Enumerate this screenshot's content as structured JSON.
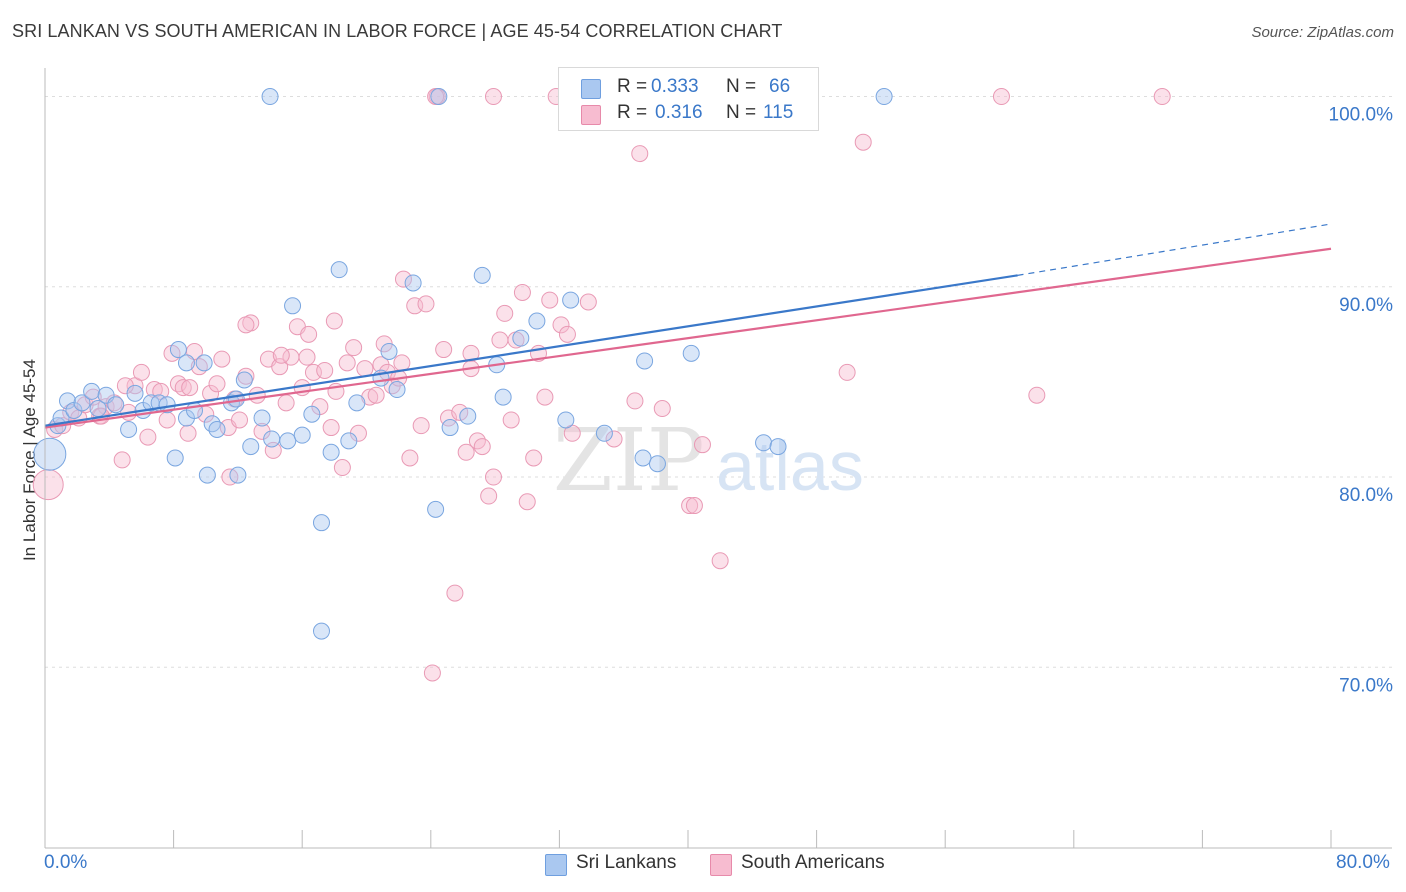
{
  "title": "SRI LANKAN VS SOUTH AMERICAN IN LABOR FORCE | AGE 45-54 CORRELATION CHART",
  "source": "Source: ZipAtlas.com",
  "watermark": {
    "zip": "ZIP",
    "atlas": "atlas"
  },
  "legend": {
    "r_label": "R =",
    "n_label": "N =",
    "entries": [
      {
        "name": "Sri Lankans",
        "r": "0.333",
        "n": "66",
        "fill": "#aac8f0",
        "stroke": "#6f9fdf"
      },
      {
        "name": "South Americans",
        "r": "0.316",
        "n": "115",
        "fill": "#f7bcd0",
        "stroke": "#e78aaa"
      }
    ]
  },
  "chart_data": {
    "type": "scatter",
    "xlabel": "",
    "ylabel": "In Labor Force | Age 45-54",
    "xlim": [
      0,
      80
    ],
    "ylim": [
      60.5,
      101.5
    ],
    "x_tick_labels": [
      "0.0%",
      "80.0%"
    ],
    "y_ticks": [
      {
        "value": 100,
        "label": "100.0%"
      },
      {
        "value": 90,
        "label": "90.0%"
      },
      {
        "value": 80,
        "label": "80.0%"
      },
      {
        "value": 70,
        "label": "70.0%"
      }
    ],
    "grid": true,
    "colors": {
      "sri_lankans": "#3a78c9",
      "south_americans": "#e0678f",
      "tick_label": "#3a78c9"
    },
    "series": [
      {
        "name": "Sri Lankans",
        "trend": {
          "x0": 0,
          "y0": 82.7,
          "x1": 60.5,
          "y1": 90.6,
          "dashed_to_x": 80,
          "dashed_to_y": 93.3
        },
        "points": [
          [
            0.3,
            81.2
          ],
          [
            0.8,
            82.7
          ],
          [
            1.0,
            83.1
          ],
          [
            1.4,
            84.0
          ],
          [
            1.8,
            83.5
          ],
          [
            2.3,
            83.9
          ],
          [
            2.9,
            84.5
          ],
          [
            3.3,
            83.6
          ],
          [
            3.8,
            84.3
          ],
          [
            4.4,
            83.8
          ],
          [
            5.2,
            82.5
          ],
          [
            5.6,
            84.4
          ],
          [
            6.1,
            83.5
          ],
          [
            6.6,
            83.9
          ],
          [
            7.1,
            83.9
          ],
          [
            7.6,
            83.8
          ],
          [
            8.1,
            81.0
          ],
          [
            8.3,
            86.7
          ],
          [
            8.8,
            83.1
          ],
          [
            9.3,
            83.5
          ],
          [
            9.9,
            86.0
          ],
          [
            10.1,
            80.1
          ],
          [
            10.4,
            82.8
          ],
          [
            10.7,
            82.5
          ],
          [
            11.6,
            83.9
          ],
          [
            12.0,
            80.1
          ],
          [
            12.4,
            85.1
          ],
          [
            12.8,
            81.6
          ],
          [
            13.5,
            83.1
          ],
          [
            14.1,
            82.0
          ],
          [
            15.1,
            81.9
          ],
          [
            15.4,
            89.0
          ],
          [
            16.0,
            82.2
          ],
          [
            16.6,
            83.3
          ],
          [
            17.2,
            77.6
          ],
          [
            17.8,
            81.3
          ],
          [
            18.3,
            90.9
          ],
          [
            18.9,
            81.9
          ],
          [
            19.4,
            83.9
          ],
          [
            20.9,
            85.2
          ],
          [
            21.4,
            86.6
          ],
          [
            21.9,
            84.6
          ],
          [
            22.9,
            90.2
          ],
          [
            24.3,
            78.3
          ],
          [
            25.2,
            82.6
          ],
          [
            26.3,
            83.2
          ],
          [
            27.2,
            90.6
          ],
          [
            28.1,
            85.9
          ],
          [
            28.5,
            84.2
          ],
          [
            30.6,
            88.2
          ],
          [
            32.4,
            83.0
          ],
          [
            32.7,
            89.3
          ],
          [
            34.8,
            82.3
          ],
          [
            37.2,
            81.0
          ],
          [
            38.1,
            80.7
          ],
          [
            40.2,
            86.5
          ],
          [
            44.7,
            81.8
          ],
          [
            45.6,
            81.6
          ],
          [
            14.0,
            100.0
          ],
          [
            24.5,
            100.0
          ],
          [
            52.2,
            100.0
          ],
          [
            8.8,
            86.0
          ],
          [
            17.2,
            71.9
          ],
          [
            37.3,
            86.1
          ],
          [
            29.6,
            87.3
          ],
          [
            11.9,
            84.1
          ]
        ]
      },
      {
        "name": "South Americans",
        "trend": {
          "x0": 0,
          "y0": 82.6,
          "x1": 80,
          "y1": 92.0
        },
        "points": [
          [
            0.2,
            79.6
          ],
          [
            0.6,
            82.5
          ],
          [
            1.1,
            82.7
          ],
          [
            1.6,
            83.4
          ],
          [
            2.1,
            83.1
          ],
          [
            2.5,
            83.8
          ],
          [
            3.0,
            84.2
          ],
          [
            3.4,
            83.2
          ],
          [
            3.8,
            83.7
          ],
          [
            4.3,
            83.9
          ],
          [
            4.8,
            80.9
          ],
          [
            5.2,
            83.4
          ],
          [
            5.6,
            84.8
          ],
          [
            6.0,
            85.5
          ],
          [
            6.4,
            82.1
          ],
          [
            6.8,
            84.6
          ],
          [
            7.2,
            84.5
          ],
          [
            7.6,
            83.0
          ],
          [
            7.9,
            86.5
          ],
          [
            8.3,
            84.9
          ],
          [
            8.6,
            84.7
          ],
          [
            8.9,
            82.3
          ],
          [
            9.3,
            86.6
          ],
          [
            9.6,
            85.8
          ],
          [
            10.0,
            83.3
          ],
          [
            10.3,
            84.4
          ],
          [
            10.7,
            84.9
          ],
          [
            11.0,
            86.2
          ],
          [
            11.4,
            82.6
          ],
          [
            11.8,
            84.1
          ],
          [
            12.1,
            83.0
          ],
          [
            12.5,
            85.3
          ],
          [
            12.8,
            88.1
          ],
          [
            13.2,
            84.3
          ],
          [
            13.5,
            82.4
          ],
          [
            13.9,
            86.2
          ],
          [
            14.2,
            81.4
          ],
          [
            14.6,
            85.8
          ],
          [
            15.0,
            83.9
          ],
          [
            15.3,
            86.3
          ],
          [
            15.7,
            87.9
          ],
          [
            16.0,
            84.7
          ],
          [
            16.4,
            87.5
          ],
          [
            16.7,
            85.5
          ],
          [
            17.1,
            83.7
          ],
          [
            17.4,
            85.6
          ],
          [
            17.8,
            82.6
          ],
          [
            18.1,
            84.5
          ],
          [
            18.5,
            80.5
          ],
          [
            18.8,
            86.0
          ],
          [
            19.2,
            86.8
          ],
          [
            19.5,
            82.3
          ],
          [
            19.9,
            85.7
          ],
          [
            20.2,
            84.2
          ],
          [
            20.6,
            84.3
          ],
          [
            20.9,
            85.9
          ],
          [
            21.3,
            85.5
          ],
          [
            21.6,
            84.8
          ],
          [
            22.0,
            85.2
          ],
          [
            22.3,
            90.4
          ],
          [
            22.7,
            81.0
          ],
          [
            23.0,
            89.0
          ],
          [
            23.4,
            82.7
          ],
          [
            23.7,
            89.1
          ],
          [
            24.1,
            69.7
          ],
          [
            24.4,
            100.0
          ],
          [
            24.8,
            86.7
          ],
          [
            25.1,
            83.1
          ],
          [
            25.5,
            73.9
          ],
          [
            25.8,
            83.4
          ],
          [
            26.2,
            81.3
          ],
          [
            26.5,
            86.5
          ],
          [
            26.9,
            81.9
          ],
          [
            27.2,
            81.6
          ],
          [
            27.6,
            79.0
          ],
          [
            27.9,
            80.0
          ],
          [
            28.3,
            87.2
          ],
          [
            28.6,
            88.6
          ],
          [
            29.0,
            83.0
          ],
          [
            29.3,
            87.2
          ],
          [
            29.7,
            89.7
          ],
          [
            30.0,
            78.7
          ],
          [
            30.4,
            81.0
          ],
          [
            30.7,
            86.5
          ],
          [
            31.1,
            84.2
          ],
          [
            31.4,
            89.3
          ],
          [
            31.8,
            100.0
          ],
          [
            32.1,
            88.0
          ],
          [
            32.5,
            87.5
          ],
          [
            32.8,
            82.3
          ],
          [
            35.4,
            82.0
          ],
          [
            36.7,
            84.0
          ],
          [
            37.0,
            97.0
          ],
          [
            38.4,
            83.6
          ],
          [
            40.1,
            78.5
          ],
          [
            40.4,
            78.5
          ],
          [
            40.9,
            81.7
          ],
          [
            42.0,
            75.6
          ],
          [
            49.9,
            85.5
          ],
          [
            50.9,
            97.6
          ],
          [
            59.5,
            100.0
          ],
          [
            61.7,
            84.3
          ],
          [
            69.5,
            100.0
          ],
          [
            27.9,
            100.0
          ],
          [
            24.3,
            100.0
          ],
          [
            26.5,
            85.7
          ],
          [
            14.7,
            86.4
          ],
          [
            16.3,
            86.3
          ],
          [
            9.0,
            84.7
          ],
          [
            11.5,
            80.0
          ],
          [
            21.1,
            87.0
          ],
          [
            33.8,
            89.2
          ],
          [
            18.0,
            88.2
          ],
          [
            22.2,
            86.0
          ],
          [
            5.0,
            84.8
          ],
          [
            3.5,
            83.2
          ],
          [
            12.5,
            88.0
          ]
        ]
      }
    ]
  }
}
